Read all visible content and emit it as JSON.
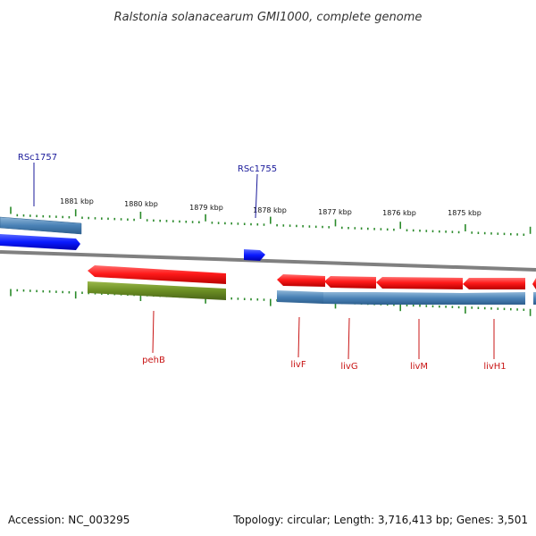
{
  "title": "Ralstonia solanacearum GMI1000, complete genome",
  "ticks": [
    "1881 kbp",
    "1880 kbp",
    "1879 kbp",
    "1878 kbp",
    "1877 kbp",
    "1876 kbp",
    "1875 kbp"
  ],
  "genes": [
    {
      "name": "RSc1757",
      "color": "#1a1a9a"
    },
    {
      "name": "RSc1755",
      "color": "#1a1a9a"
    },
    {
      "name": "pehB",
      "color": "#c81414"
    },
    {
      "name": "livF",
      "color": "#c81414"
    },
    {
      "name": "livG",
      "color": "#c81414"
    },
    {
      "name": "livM",
      "color": "#c81414"
    },
    {
      "name": "livH1",
      "color": "#c81414"
    }
  ],
  "colors": {
    "backbone": "#808080",
    "tick": "#2a8a2a",
    "cds_forward": "#ff1a1a",
    "cds_blue": "#0a1aff",
    "gene_feature_blue": "#4a82b6",
    "gene_feature_green": "#6b8e23"
  },
  "footer": {
    "accession": "Accession: NC_003295",
    "summary": "Topology: circular; Length: 3,716,413 bp; Genes: 3,501"
  }
}
